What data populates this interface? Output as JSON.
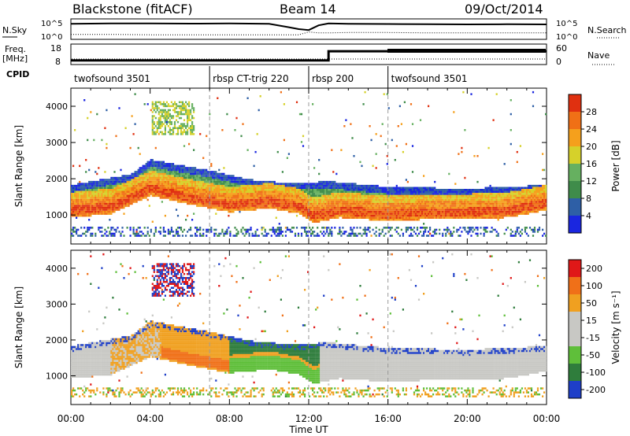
{
  "header": {
    "radar": "Blackstone (fitACF)",
    "beam": "Beam 14",
    "date": "09/Oct/2014"
  },
  "chart_data": [
    {
      "type": "line",
      "panel": "sky-noise",
      "label_left": "N.Sky",
      "label_right": "N.Search",
      "tick_labels": [
        "10^5",
        "10^0"
      ],
      "x": [
        0,
        2,
        4,
        6,
        8,
        10,
        11,
        11.5,
        12,
        12.5,
        13,
        14,
        16,
        18,
        20,
        22,
        24
      ],
      "series": [
        {
          "name": "N.Sky",
          "values": [
            0.78,
            0.8,
            0.8,
            0.79,
            0.8,
            0.78,
            0.6,
            0.5,
            0.45,
            0.7,
            0.8,
            0.78,
            0.77,
            0.76,
            0.75,
            0.76,
            0.75
          ]
        },
        {
          "name": "N.Search",
          "values": [
            0.22,
            0.22,
            0.2,
            0.2,
            0.2,
            0.2,
            0.2,
            0.2,
            0.35,
            0.3,
            0.3,
            0.32,
            0.32,
            0.3,
            0.3,
            0.3,
            0.3
          ]
        }
      ]
    },
    {
      "type": "line",
      "panel": "frequency",
      "label_left": "Freq.",
      "unit_left": "[MHz]",
      "label_right": "Nave",
      "left_ticks": [
        "18",
        "8"
      ],
      "right_ticks": [
        "60",
        "0"
      ],
      "x": [
        0,
        13,
        13,
        16,
        16,
        24
      ],
      "series": [
        {
          "name": "Freq",
          "values": [
            10,
            10,
            14.5,
            14.5,
            14.5,
            14.5
          ]
        },
        {
          "name": "Nave",
          "values": [
            10,
            10,
            12,
            12,
            12,
            12
          ]
        }
      ]
    },
    {
      "type": "table",
      "panel": "cpid",
      "label": "CPID",
      "segments": [
        {
          "name": "twofsound 3501",
          "start": 0,
          "end": 7
        },
        {
          "name": "rbsp CT-trig 220",
          "start": 7,
          "end": 12
        },
        {
          "name": "rbsp 200",
          "start": 12,
          "end": 16
        },
        {
          "name": "twofsound 3501",
          "start": 16,
          "end": 24
        }
      ]
    },
    {
      "type": "heatmap",
      "panel": "power",
      "ylabel": "Slant Range [km]",
      "xlim": [
        0,
        24
      ],
      "ylim": [
        200,
        4500
      ],
      "yticks": [
        1000,
        2000,
        3000,
        4000
      ],
      "colorbar_label": "Power [dB]",
      "colorbar_ticks": [
        "4",
        "8",
        "12",
        "16",
        "20",
        "24",
        "28"
      ],
      "colorbar_colors": [
        "#1a26e0",
        "#2e5fa6",
        "#3f8c4a",
        "#66b060",
        "#d6d12a",
        "#f5a01c",
        "#f07016",
        "#e03010"
      ],
      "main_band_center": [
        [
          0,
          1100
        ],
        [
          2,
          1200
        ],
        [
          4,
          1700
        ],
        [
          6,
          1450
        ],
        [
          8,
          1250
        ],
        [
          10,
          1350
        ],
        [
          11.5,
          1200
        ],
        [
          12.2,
          950
        ],
        [
          13.5,
          1100
        ],
        [
          16,
          1000
        ],
        [
          18,
          1050
        ],
        [
          20,
          1050
        ],
        [
          22,
          1100
        ],
        [
          24,
          1300
        ]
      ],
      "upper_band": [
        [
          0,
          1800
        ],
        [
          3,
          2100
        ],
        [
          4,
          2500
        ],
        [
          7,
          2200
        ],
        [
          9,
          1950
        ],
        [
          11,
          1850
        ],
        [
          13,
          1900
        ],
        [
          16,
          1750
        ],
        [
          20,
          1700
        ],
        [
          24,
          1800
        ]
      ],
      "high_patch": {
        "x": [
          4,
          6
        ],
        "y": [
          3200,
          4100
        ]
      }
    },
    {
      "type": "heatmap",
      "panel": "velocity",
      "ylabel": "Slant Range [km]",
      "xlabel": "Time UT",
      "xlim": [
        0,
        24
      ],
      "ylim": [
        200,
        4500
      ],
      "yticks": [
        1000,
        2000,
        3000,
        4000
      ],
      "xticks": [
        "00:00",
        "04:00",
        "08:00",
        "12:00",
        "16:00",
        "20:00",
        "00:00"
      ],
      "colorbar_label": "Velocity [m s⁻¹]",
      "colorbar_ticks": [
        "200",
        "100",
        "50",
        "15",
        "-15",
        "-50",
        "-100",
        "-200"
      ],
      "colorbar_colors": [
        "#1e3fc8",
        "#2f7d3c",
        "#5fbf3a",
        "#c8c8c4",
        "#c8c8c4",
        "#f0a020",
        "#f07018",
        "#e01818"
      ],
      "ground_scatter_color": "#c8c8c4"
    }
  ]
}
